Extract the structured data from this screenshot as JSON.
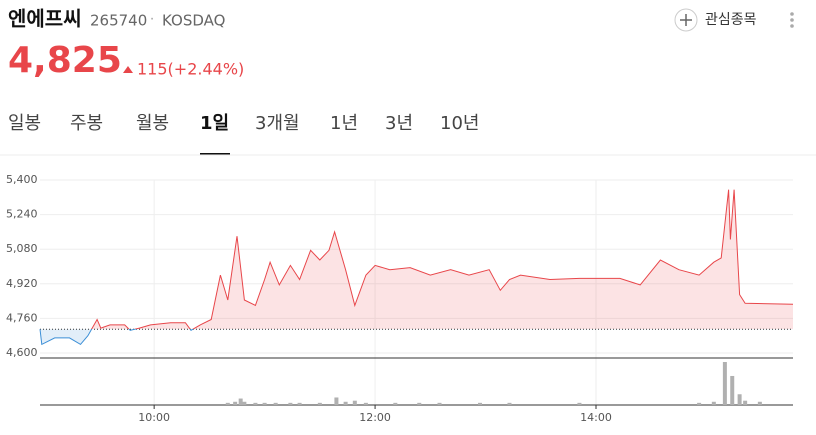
{
  "header": {
    "name": "엔에프씨",
    "code": "265740",
    "separator": "·",
    "market": "KOSDAQ",
    "watch_button": "관심종목",
    "price": "4,825",
    "change": "115(+2.44%)"
  },
  "tabs": [
    "일봉",
    "주봉",
    "월봉",
    "1일",
    "3개월",
    "1년",
    "3년",
    "10년"
  ],
  "active_tab": 3,
  "chart_data": [
    {
      "type": "line",
      "color": "#e8464a",
      "color_below": "#3b8ed6",
      "reference_line": 4710,
      "x": [
        538,
        539,
        546,
        554,
        560,
        564,
        569,
        571,
        576,
        584,
        587,
        592,
        598,
        609,
        617,
        620,
        625,
        631,
        636,
        640,
        645,
        649,
        655,
        660,
        663,
        668,
        674,
        679,
        685,
        690,
        695,
        698,
        704,
        709,
        715,
        720,
        728,
        739,
        750,
        761,
        771,
        782,
        788,
        793,
        799,
        815,
        831,
        853,
        864,
        875,
        885,
        896,
        904,
        908,
        912,
        913,
        915,
        918,
        921,
        947
      ],
      "values": [
        4710,
        4640,
        4670,
        4670,
        4640,
        4680,
        4755,
        4715,
        4730,
        4730,
        4705,
        4715,
        4730,
        4740,
        4740,
        4705,
        4730,
        4755,
        4960,
        4845,
        5140,
        4845,
        4820,
        4940,
        5020,
        4915,
        5005,
        4940,
        5075,
        5030,
        5075,
        5160,
        4985,
        4820,
        4960,
        5005,
        4985,
        4995,
        4960,
        4985,
        4960,
        4985,
        4890,
        4940,
        4960,
        4940,
        4945,
        4945,
        4915,
        5030,
        4985,
        4960,
        5020,
        5040,
        5355,
        5125,
        5355,
        4870,
        4830,
        4825
      ],
      "xlim": [
        538,
        947
      ],
      "xticks": [
        {
          "value": 600,
          "label": "10:00"
        },
        {
          "value": 720,
          "label": "12:00"
        },
        {
          "value": 840,
          "label": "14:00"
        }
      ],
      "ylim": [
        4600,
        5400
      ],
      "yticks": [
        {
          "value": 4600,
          "label": "4,600"
        },
        {
          "value": 4760,
          "label": "4,760"
        },
        {
          "value": 4920,
          "label": "4,920"
        },
        {
          "value": 5080,
          "label": "5,080"
        },
        {
          "value": 5240,
          "label": "5,240"
        },
        {
          "value": 5400,
          "label": "5,400"
        }
      ],
      "grid": true
    },
    {
      "type": "bar",
      "color": "#b0b0b0",
      "xlim": [
        538,
        947
      ],
      "x": [
        640,
        644,
        647,
        649,
        655,
        660,
        666,
        674,
        679,
        690,
        699,
        704,
        709,
        715,
        731,
        744,
        755,
        777,
        793,
        831,
        896,
        904,
        910,
        914,
        918,
        921,
        929
      ],
      "values": [
        2,
        3,
        6,
        3,
        2,
        2,
        2,
        2,
        2,
        2,
        7,
        3,
        4,
        2,
        2,
        2,
        2,
        2,
        2,
        2,
        2,
        3,
        40,
        27,
        10,
        4,
        3
      ]
    }
  ]
}
